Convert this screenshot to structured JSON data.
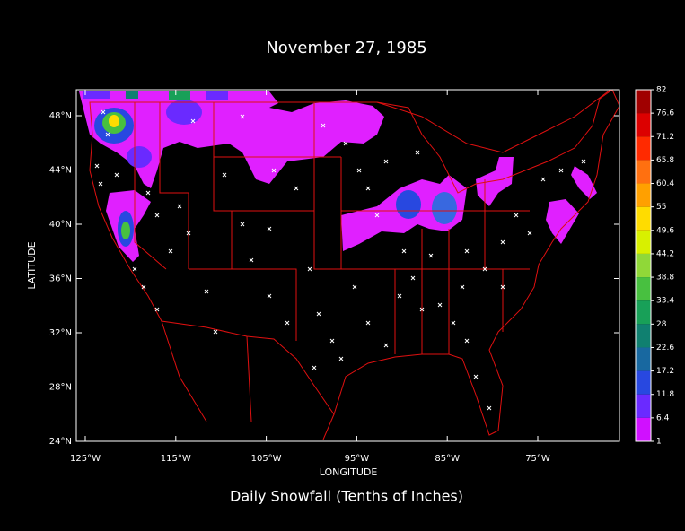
{
  "title": "November 27, 1985",
  "subtitle": "Daily Snowfall (Tenths of Inches)",
  "x_axis": {
    "label": "LONGITUDE",
    "ticks": [
      "125°W",
      "115°W",
      "105°W",
      "95°W",
      "85°W",
      "75°W"
    ]
  },
  "y_axis": {
    "label": "LATITUDE",
    "ticks": [
      "48°N",
      "44°N",
      "40°N",
      "36°N",
      "32°N",
      "28°N",
      "24°N"
    ]
  },
  "colorbar": {
    "labels": [
      "82",
      "76.6",
      "71.2",
      "65.8",
      "60.4",
      "55",
      "49.6",
      "44.2",
      "38.8",
      "33.4",
      "28",
      "22.6",
      "17.2",
      "11.8",
      "6.4",
      "1"
    ],
    "colors": [
      "#a00000",
      "#dc0000",
      "#ff2a00",
      "#ff7010",
      "#ffa000",
      "#ffdc00",
      "#d8f000",
      "#90d838",
      "#48c040",
      "#18a058",
      "#108070",
      "#1868a0",
      "#2848e0",
      "#6a2aff",
      "#d010ff"
    ]
  }
}
